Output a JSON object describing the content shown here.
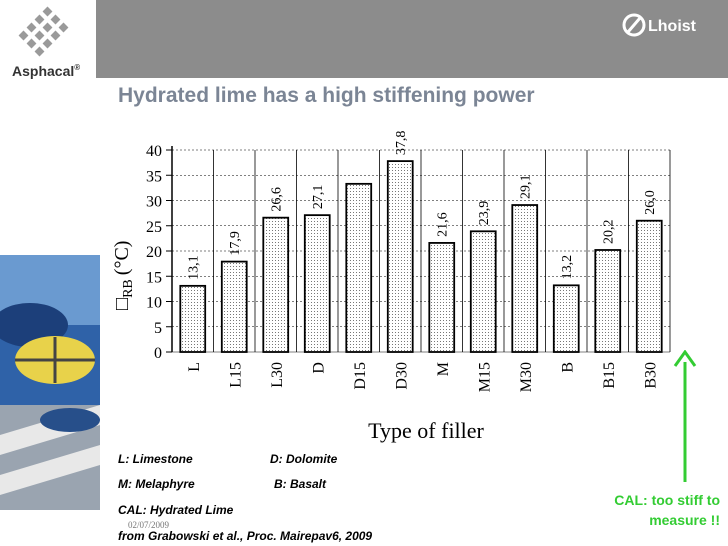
{
  "brand": {
    "left": "Asphacal",
    "left_mark": "®",
    "right": "Lhoist"
  },
  "slide": {
    "title": "Hydrated lime has a high stiffening power",
    "date": "02/07/2009"
  },
  "legend": {
    "l": "L: Limestone",
    "d": "D: Dolomite",
    "m": "M: Melaphyre",
    "b": "B: Basalt",
    "cal": "CAL: Hydrated Lime",
    "source": "from Grabowski et al., Proc. Mairepav6, 2009"
  },
  "note": {
    "line1": "CAL: too stiff to",
    "line2": "measure !!"
  },
  "chart_data": {
    "type": "bar",
    "categories": [
      "L",
      "L15",
      "L30",
      "D",
      "D15",
      "D30",
      "M",
      "M15",
      "M30",
      "B",
      "B15",
      "B30"
    ],
    "values": [
      13.1,
      17.9,
      26.6,
      27.1,
      33.3,
      37.8,
      21.6,
      23.9,
      29.1,
      13.2,
      20.2,
      26.0
    ],
    "labels": [
      "13,1",
      "17,9",
      "26,6",
      "27,1",
      "",
      "37,8",
      "21,6",
      "23,9",
      "29,1",
      "13,2",
      "20,2",
      "26,0"
    ],
    "xlabel": "Type of filler",
    "ylabel_prefix": "□",
    "ylabel_sub": "RB",
    "ylabel_unit": "(°C)",
    "ylim": [
      0,
      40
    ],
    "yticks": [
      0,
      5,
      10,
      15,
      20,
      25,
      30,
      35,
      40
    ],
    "grid": true,
    "bar_fill": "#e0e0e0"
  }
}
